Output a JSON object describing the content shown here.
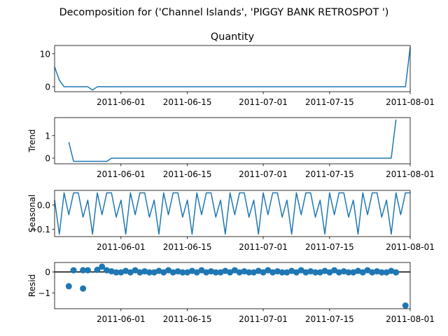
{
  "figure": {
    "suptitle": "Decomposition for ('Channel Islands', 'PIGGY BANK RETROSPOT ')"
  },
  "colors": {
    "series": "#1f77b4",
    "zero_line": "#000000"
  },
  "chart_data": [
    {
      "type": "line",
      "title": "Quantity",
      "ylabel": "",
      "x_start": "2011-05-18",
      "x_end": "2011-08-01",
      "ylim": [
        -1.5,
        12.5
      ],
      "yticks": [
        0,
        10
      ],
      "xticks": [
        "2011-06-01",
        "2011-06-15",
        "2011-07-01",
        "2011-07-15",
        "2011-08-01"
      ],
      "points": [
        [
          "2011-05-18",
          6
        ],
        [
          "2011-05-19",
          2
        ],
        [
          "2011-05-20",
          0
        ],
        [
          "2011-05-21",
          0
        ],
        [
          "2011-05-22",
          0
        ],
        [
          "2011-05-23",
          0
        ],
        [
          "2011-05-24",
          0
        ],
        [
          "2011-05-25",
          0
        ],
        [
          "2011-05-26",
          -1
        ],
        [
          "2011-05-27",
          0
        ],
        [
          "2011-05-28",
          0
        ],
        [
          "2011-07-31",
          0
        ],
        [
          "2011-08-01",
          12
        ]
      ]
    },
    {
      "type": "line",
      "title": "",
      "ylabel": "Trend",
      "x_start": "2011-05-18",
      "x_end": "2011-08-01",
      "ylim": [
        -0.25,
        1.8
      ],
      "yticks": [
        0,
        1
      ],
      "xticks": [
        "2011-06-01",
        "2011-06-15",
        "2011-07-01",
        "2011-07-15",
        "2011-08-01"
      ],
      "points": [
        [
          "2011-05-21",
          0.71
        ],
        [
          "2011-05-22",
          -0.14
        ],
        [
          "2011-05-23",
          -0.14
        ],
        [
          "2011-05-24",
          -0.14
        ],
        [
          "2011-05-25",
          -0.14
        ],
        [
          "2011-05-26",
          -0.14
        ],
        [
          "2011-05-27",
          -0.14
        ],
        [
          "2011-05-28",
          -0.14
        ],
        [
          "2011-05-29",
          -0.14
        ],
        [
          "2011-05-30",
          0
        ],
        [
          "2011-07-28",
          0
        ],
        [
          "2011-07-29",
          1.71
        ]
      ]
    },
    {
      "type": "line",
      "title": "",
      "ylabel": "Seasonal",
      "x_start": "2011-05-18",
      "x_end": "2011-08-01",
      "ylim": [
        -0.13,
        0.06
      ],
      "yticks": [
        -0.1,
        0.0
      ],
      "ytick_labels": [
        "−0.1",
        "0.0"
      ],
      "xticks": [
        "2011-06-01",
        "2011-06-15",
        "2011-07-01",
        "2011-07-15",
        "2011-08-01"
      ],
      "start_date": "2011-05-18",
      "end_date": "2011-08-01",
      "pattern": [
        0.02,
        -0.12,
        0.05,
        -0.04,
        0.05,
        0.05,
        -0.05
      ]
    },
    {
      "type": "scatter",
      "title": "",
      "ylabel": "Resid",
      "x_start": "2011-05-18",
      "x_end": "2011-08-01",
      "ylim": [
        -1.75,
        0.45
      ],
      "yticks": [
        -1,
        0
      ],
      "ytick_labels": [
        "−1",
        "0"
      ],
      "xticks": [
        "2011-06-01",
        "2011-06-15",
        "2011-07-01",
        "2011-07-15",
        "2011-08-01"
      ],
      "zero_line": true,
      "points": [
        [
          "2011-05-21",
          -0.68
        ],
        [
          "2011-05-22",
          0.08
        ],
        [
          "2011-05-24",
          0.08
        ],
        [
          "2011-05-24",
          -0.79
        ],
        [
          "2011-05-25",
          0.08
        ],
        [
          "2011-05-27",
          0.1
        ],
        [
          "2011-05-28",
          0.25
        ],
        [
          "2011-05-29",
          0.08
        ],
        [
          "2011-05-30",
          0.03
        ],
        [
          "2011-05-31",
          -0.02
        ],
        [
          "2011-06-01",
          -0.02
        ],
        [
          "2011-06-02",
          0.05
        ],
        [
          "2011-06-03",
          -0.02
        ],
        [
          "2011-06-04",
          0.08
        ],
        [
          "2011-06-05",
          -0.02
        ],
        [
          "2011-06-06",
          0.03
        ],
        [
          "2011-06-07",
          -0.02
        ],
        [
          "2011-06-08",
          -0.02
        ],
        [
          "2011-06-09",
          0.05
        ],
        [
          "2011-06-10",
          -0.02
        ],
        [
          "2011-06-11",
          0.08
        ],
        [
          "2011-06-12",
          -0.02
        ],
        [
          "2011-06-13",
          0.03
        ],
        [
          "2011-06-14",
          -0.02
        ],
        [
          "2011-06-15",
          -0.02
        ],
        [
          "2011-06-16",
          0.05
        ],
        [
          "2011-06-17",
          -0.02
        ],
        [
          "2011-06-18",
          0.08
        ],
        [
          "2011-06-19",
          -0.02
        ],
        [
          "2011-06-20",
          0.03
        ],
        [
          "2011-06-21",
          -0.02
        ],
        [
          "2011-06-22",
          -0.02
        ],
        [
          "2011-06-23",
          0.05
        ],
        [
          "2011-06-24",
          -0.02
        ],
        [
          "2011-06-25",
          0.08
        ],
        [
          "2011-06-26",
          -0.02
        ],
        [
          "2011-06-27",
          0.03
        ],
        [
          "2011-06-28",
          -0.02
        ],
        [
          "2011-06-29",
          -0.02
        ],
        [
          "2011-06-30",
          0.05
        ],
        [
          "2011-07-01",
          -0.02
        ],
        [
          "2011-07-02",
          0.08
        ],
        [
          "2011-07-03",
          -0.02
        ],
        [
          "2011-07-04",
          0.03
        ],
        [
          "2011-07-05",
          -0.02
        ],
        [
          "2011-07-06",
          -0.02
        ],
        [
          "2011-07-07",
          0.05
        ],
        [
          "2011-07-08",
          -0.02
        ],
        [
          "2011-07-09",
          0.08
        ],
        [
          "2011-07-10",
          -0.02
        ],
        [
          "2011-07-11",
          0.03
        ],
        [
          "2011-07-12",
          -0.02
        ],
        [
          "2011-07-13",
          -0.02
        ],
        [
          "2011-07-14",
          0.05
        ],
        [
          "2011-07-15",
          -0.02
        ],
        [
          "2011-07-16",
          0.08
        ],
        [
          "2011-07-17",
          -0.02
        ],
        [
          "2011-07-18",
          0.03
        ],
        [
          "2011-07-19",
          -0.02
        ],
        [
          "2011-07-20",
          -0.02
        ],
        [
          "2011-07-21",
          0.05
        ],
        [
          "2011-07-22",
          -0.02
        ],
        [
          "2011-07-23",
          0.08
        ],
        [
          "2011-07-24",
          -0.02
        ],
        [
          "2011-07-25",
          0.03
        ],
        [
          "2011-07-26",
          -0.02
        ],
        [
          "2011-07-27",
          -0.02
        ],
        [
          "2011-07-28",
          0.05
        ],
        [
          "2011-07-29",
          -0.02
        ],
        [
          "2011-07-31",
          -1.6
        ]
      ]
    }
  ]
}
